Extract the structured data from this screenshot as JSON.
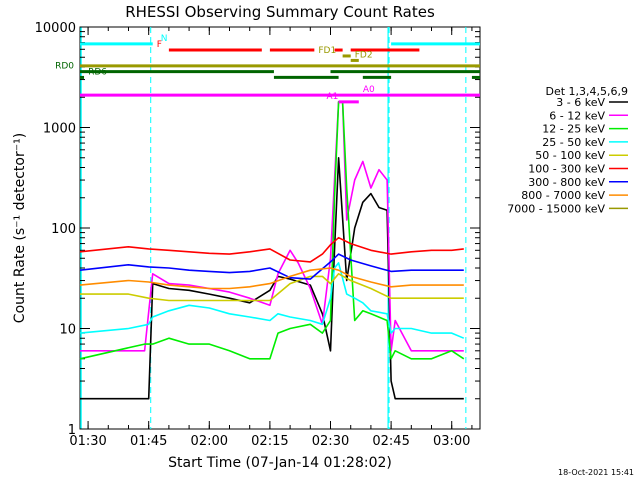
{
  "chart_data": {
    "type": "line",
    "title": "RHESSI Observing Summary Count Rates",
    "xlabel": "Start Time (07-Jan-14 01:28:02)",
    "ylabel": "Count Rate (s⁻¹ detector⁻¹)",
    "y_scale": "log",
    "ylim": [
      1,
      10000
    ],
    "xlim_minutes": [
      88,
      187
    ],
    "x_ticks": [
      {
        "label": "01:30",
        "minute": 90
      },
      {
        "label": "01:45",
        "minute": 105
      },
      {
        "label": "02:00",
        "minute": 120
      },
      {
        "label": "02:15",
        "minute": 135
      },
      {
        "label": "02:30",
        "minute": 150
      },
      {
        "label": "02:45",
        "minute": 165
      },
      {
        "label": "03:00",
        "minute": 180
      }
    ],
    "y_ticks": [
      {
        "label": "1",
        "value": 1
      },
      {
        "label": "10",
        "value": 10
      },
      {
        "label": "100",
        "value": 100
      },
      {
        "label": "1000",
        "value": 1000
      },
      {
        "label": "10000",
        "value": 10000
      }
    ],
    "legend_title": "Det 1,3,4,5,6,9",
    "legend_position": "right",
    "vertical_markers_minutes": [
      105.5,
      164.5,
      183.5
    ],
    "series": [
      {
        "name": "3 - 6 keV",
        "color": "#000000",
        "x": [
          88,
          100,
          105,
          106,
          110,
          115,
          120,
          125,
          130,
          135,
          137,
          140,
          145,
          148,
          150,
          151,
          152,
          154,
          156,
          158,
          160,
          162,
          164,
          165,
          166,
          170,
          175,
          180,
          183
        ],
        "y": [
          2,
          2,
          2,
          28,
          25,
          24,
          22,
          20,
          18,
          24,
          33,
          31,
          27,
          14,
          6,
          60,
          500,
          30,
          100,
          180,
          220,
          160,
          150,
          3,
          2,
          2,
          2,
          2,
          2
        ]
      },
      {
        "name": "6 - 12 keV",
        "color": "#ff00ff",
        "x": [
          88,
          104,
          106,
          110,
          115,
          120,
          125,
          130,
          135,
          137,
          140,
          142,
          145,
          148,
          150,
          151,
          152,
          153,
          154,
          156,
          158,
          160,
          162,
          164,
          165,
          166,
          170,
          175,
          180,
          183
        ],
        "y": [
          6,
          6,
          35,
          28,
          27,
          25,
          23,
          20,
          17,
          35,
          60,
          45,
          25,
          11,
          50,
          300,
          1800,
          1800,
          120,
          300,
          460,
          250,
          380,
          300,
          6,
          12,
          6,
          6,
          6,
          6
        ]
      },
      {
        "name": "12 - 25 keV",
        "color": "#00ee00",
        "x": [
          88,
          104,
          106,
          110,
          115,
          120,
          125,
          130,
          135,
          137,
          140,
          145,
          148,
          150,
          151,
          152,
          153,
          154,
          156,
          158,
          160,
          164,
          165,
          166,
          170,
          175,
          180,
          183
        ],
        "y": [
          5,
          7,
          7,
          8,
          7,
          7,
          6,
          5,
          5,
          9,
          10,
          11,
          9,
          12,
          200,
          1800,
          1800,
          250,
          12,
          15,
          14,
          12,
          5,
          6,
          5,
          5,
          6,
          5
        ]
      },
      {
        "name": "25 - 50 keV",
        "color": "#00ffff",
        "x": [
          88,
          100,
          105,
          106,
          110,
          115,
          120,
          125,
          130,
          135,
          137,
          140,
          145,
          148,
          150,
          151,
          152,
          154,
          156,
          158,
          160,
          164,
          165,
          166,
          170,
          175,
          180,
          183
        ],
        "y": [
          9,
          10,
          11,
          13,
          15,
          17,
          16,
          14,
          13,
          12,
          14,
          13,
          12,
          11,
          20,
          40,
          45,
          22,
          20,
          18,
          15,
          14,
          9,
          10,
          10,
          9,
          9,
          8
        ]
      },
      {
        "name": "50 - 100 keV",
        "color": "#cccc00",
        "x": [
          88,
          100,
          105,
          110,
          115,
          120,
          125,
          130,
          135,
          140,
          145,
          148,
          150,
          152,
          155,
          160,
          165,
          170,
          175,
          180,
          183
        ],
        "y": [
          22,
          22,
          20,
          19,
          19,
          19,
          19,
          19,
          19,
          28,
          33,
          33,
          28,
          35,
          30,
          25,
          20,
          20,
          20,
          20,
          20
        ]
      },
      {
        "name": "100 - 300 keV",
        "color": "#ff0000",
        "x": [
          88,
          100,
          105,
          110,
          115,
          120,
          125,
          130,
          135,
          140,
          145,
          148,
          150,
          152,
          155,
          160,
          165,
          170,
          175,
          180,
          183
        ],
        "y": [
          58,
          65,
          62,
          60,
          58,
          56,
          55,
          58,
          62,
          48,
          46,
          55,
          68,
          80,
          70,
          60,
          55,
          58,
          60,
          60,
          62
        ]
      },
      {
        "name": "300 - 800 keV",
        "color": "#0000ff",
        "x": [
          88,
          100,
          105,
          110,
          115,
          120,
          125,
          130,
          135,
          140,
          145,
          150,
          152,
          155,
          160,
          165,
          170,
          175,
          180,
          183
        ],
        "y": [
          38,
          43,
          41,
          40,
          38,
          37,
          36,
          37,
          40,
          32,
          31,
          46,
          55,
          48,
          42,
          37,
          38,
          38,
          38,
          38
        ]
      },
      {
        "name": "800 - 7000 keV",
        "color": "#ff8c00",
        "x": [
          88,
          100,
          105,
          110,
          115,
          120,
          125,
          130,
          135,
          140,
          145,
          150,
          152,
          155,
          160,
          165,
          170,
          175,
          180,
          183
        ],
        "y": [
          27,
          30,
          29,
          27,
          26,
          25,
          25,
          26,
          28,
          33,
          38,
          40,
          38,
          33,
          29,
          26,
          27,
          27,
          27,
          27
        ]
      },
      {
        "name": "7000 - 15000 keV",
        "color": "#999900",
        "x": [],
        "y": []
      }
    ],
    "flag_bars": [
      {
        "label": "N",
        "color": "#00ffff",
        "y": 6800,
        "label_x": 108,
        "segments": [
          [
            88,
            106
          ],
          [
            165,
            187
          ]
        ]
      },
      {
        "label": "F",
        "color": "#ff0000",
        "y": 5900,
        "label_x": 107,
        "segments": [
          [
            110,
            133
          ],
          [
            135,
            146
          ],
          [
            151,
            153
          ],
          [
            155,
            172
          ]
        ]
      },
      {
        "label": "FD1",
        "color": "#999900",
        "y": 5150,
        "label_x": 147,
        "segments": [
          [
            153,
            155
          ]
        ]
      },
      {
        "label": "FD2",
        "color": "#999900",
        "y": 4650,
        "label_x": 156,
        "segments": [
          [
            155,
            157
          ]
        ]
      },
      {
        "label": "",
        "color": "#999900",
        "y": 4100,
        "label_x": 88,
        "segments": [
          [
            88,
            187
          ]
        ]
      },
      {
        "label": "RD0",
        "color": "#006400",
        "y": 3600,
        "label_x": 82,
        "segments": [
          [
            88,
            136
          ],
          [
            150,
            187
          ]
        ]
      },
      {
        "label": "RD6",
        "color": "#006400",
        "y": 3150,
        "label_x": 90,
        "segments": [
          [
            136,
            152
          ],
          [
            158,
            165
          ],
          [
            185,
            187
          ]
        ]
      },
      {
        "label": "",
        "color": "#006400",
        "y": 3150,
        "label_x": 88,
        "segments": [
          [
            88,
            89
          ]
        ]
      },
      {
        "label": "A0",
        "color": "#ff00ff",
        "y": 2100,
        "label_x": 158,
        "segments": [
          [
            88,
            187
          ]
        ]
      },
      {
        "label": "A1",
        "color": "#ff00ff",
        "y": 1800,
        "label_x": 149,
        "segments": [
          [
            152,
            157
          ]
        ]
      }
    ]
  },
  "timestamp": "18-Oct-2021 15:41"
}
